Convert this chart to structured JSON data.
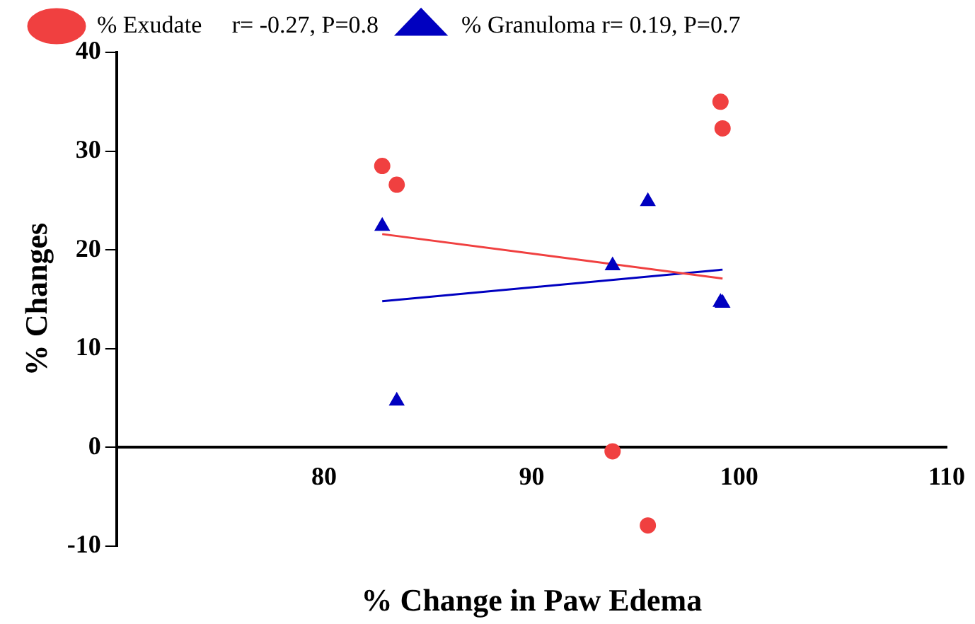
{
  "chart_data": {
    "type": "scatter",
    "xlabel": "% Change in Paw Edema",
    "ylabel": "% Changes",
    "xlim": [
      70,
      110
    ],
    "xticks": [
      80,
      90,
      100,
      110
    ],
    "ylim": [
      -10,
      40
    ],
    "yticks": [
      -10,
      0,
      10,
      20,
      30,
      40
    ],
    "grid": false,
    "legend": "top left",
    "series": [
      {
        "name": "% Exudate     r= -0.27, P=0.8",
        "color": "#f04040",
        "marker": "circle",
        "x": [
          82.8,
          83.5,
          93.9,
          95.6,
          99.1,
          99.2
        ],
        "values": [
          28.5,
          26.6,
          -0.4,
          -7.9,
          35.0,
          32.3
        ]
      },
      {
        "name": "% Granuloma r= 0.19, P=0.7",
        "color": "#0000c0",
        "marker": "triangle",
        "x": [
          82.8,
          83.5,
          93.9,
          95.6,
          99.1,
          99.2
        ],
        "values": [
          22.4,
          4.7,
          18.4,
          24.9,
          14.7,
          14.6
        ]
      },
      {
        "type": "line",
        "color": "#f04040",
        "marker": "none",
        "x": [
          82.8,
          99.2
        ],
        "values": [
          21.6,
          17.1
        ]
      },
      {
        "type": "line",
        "color": "#0000c0",
        "marker": "none",
        "x": [
          82.8,
          99.2
        ],
        "values": [
          14.8,
          18.0
        ]
      }
    ]
  }
}
